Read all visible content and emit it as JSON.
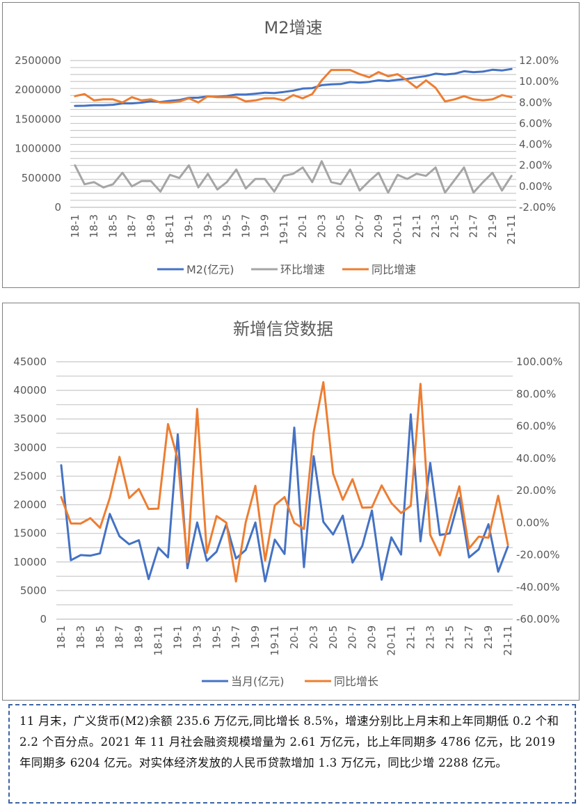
{
  "charts": [
    {
      "title": "M2增速",
      "left_ticks": [
        "2500000",
        "2000000",
        "1500000",
        "1000000",
        "500000",
        "0"
      ],
      "right_ticks": [
        "12.00%",
        "10.00%",
        "8.00%",
        "6.00%",
        "4.00%",
        "2.00%",
        "0.00%",
        "-2.00%"
      ],
      "x_tick_labels": [
        "18-1",
        "18-3",
        "18-5",
        "18-7",
        "18-9",
        "18-11",
        "19-1",
        "19-3",
        "19-5",
        "19-7",
        "19-9",
        "19-11",
        "20-1",
        "20-3",
        "20-5",
        "20-7",
        "20-9",
        "20-11",
        "21-1",
        "21-3",
        "21-5",
        "21-7",
        "21-9",
        "21-11"
      ],
      "legend": [
        {
          "label": "M2(亿元)",
          "color": "#4472c4"
        },
        {
          "label": "环比增速",
          "color": "#a5a5a5"
        },
        {
          "label": "同比增速",
          "color": "#ed7d31"
        }
      ]
    },
    {
      "title": "新增信贷数据",
      "left_ticks": [
        "45000",
        "40000",
        "35000",
        "30000",
        "25000",
        "20000",
        "15000",
        "10000",
        "5000",
        "0"
      ],
      "right_ticks": [
        "100.00%",
        "80.00%",
        "60.00%",
        "40.00%",
        "20.00%",
        "0.00%",
        "-20.00%",
        "-40.00%",
        "-60.00%"
      ],
      "x_tick_labels": [
        "18-1",
        "18-3",
        "18-5",
        "18-7",
        "18-9",
        "18-11",
        "19-1",
        "19-3",
        "19-5",
        "19-7",
        "19-9",
        "19-11",
        "20-1",
        "20-3",
        "20-5",
        "20-7",
        "20-9",
        "20-11",
        "21-1",
        "21-3",
        "21-5",
        "21-7",
        "21-9",
        "21-11"
      ],
      "legend": [
        {
          "label": "当月(亿元)",
          "color": "#4472c4"
        },
        {
          "label": "同比增长",
          "color": "#ed7d31"
        }
      ]
    }
  ],
  "chart_data": [
    {
      "type": "line",
      "title": "M2增速",
      "x": [
        "18-1",
        "18-2",
        "18-3",
        "18-4",
        "18-5",
        "18-6",
        "18-7",
        "18-8",
        "18-9",
        "18-10",
        "18-11",
        "18-12",
        "19-1",
        "19-2",
        "19-3",
        "19-4",
        "19-5",
        "19-6",
        "19-7",
        "19-8",
        "19-9",
        "19-10",
        "19-11",
        "19-12",
        "20-1",
        "20-2",
        "20-3",
        "20-4",
        "20-5",
        "20-6",
        "20-7",
        "20-8",
        "20-9",
        "20-10",
        "20-11",
        "20-12",
        "21-1",
        "21-2",
        "21-3",
        "21-4",
        "21-5",
        "21-6",
        "21-7",
        "21-8",
        "21-9",
        "21-10",
        "21-11"
      ],
      "y_left_lim": [
        0,
        2500000
      ],
      "y_right_lim": [
        -0.02,
        0.12
      ],
      "series": [
        {
          "name": "M2(亿元)",
          "axis": "left",
          "color": "#4472c4",
          "values": [
            1727000,
            1730000,
            1739000,
            1738000,
            1747000,
            1770000,
            1770000,
            1783000,
            1806000,
            1794000,
            1813000,
            1827000,
            1865000,
            1867000,
            1889000,
            1884000,
            1896000,
            1921000,
            1921000,
            1935000,
            1953000,
            1945000,
            1965000,
            1987000,
            2023000,
            2030000,
            2080000,
            2094000,
            2100000,
            2134000,
            2125000,
            2136000,
            2164000,
            2150000,
            2172000,
            2186000,
            2213000,
            2236000,
            2276000,
            2262000,
            2276000,
            2317000,
            2302000,
            2312000,
            2342000,
            2331000,
            2356000
          ]
        },
        {
          "name": "环比增速",
          "axis": "right",
          "color": "#a5a5a5",
          "values": [
            0.02,
            0.002,
            0.004,
            -0.001,
            0.002,
            0.013,
            0.0,
            0.005,
            0.005,
            -0.005,
            0.011,
            0.008,
            0.02,
            -0.001,
            0.012,
            -0.003,
            0.004,
            0.016,
            -0.002,
            0.007,
            0.007,
            -0.005,
            0.01,
            0.012,
            0.018,
            0.004,
            0.024,
            0.004,
            0.002,
            0.016,
            -0.004,
            0.005,
            0.013,
            -0.006,
            0.011,
            0.007,
            0.012,
            0.01,
            0.018,
            -0.006,
            0.006,
            0.018,
            -0.006,
            0.004,
            0.013,
            -0.004,
            0.01
          ]
        },
        {
          "name": "同比增速",
          "axis": "right",
          "color": "#ed7d31",
          "values": [
            0.086,
            0.088,
            0.082,
            0.083,
            0.083,
            0.08,
            0.085,
            0.082,
            0.083,
            0.08,
            0.08,
            0.081,
            0.084,
            0.08,
            0.086,
            0.085,
            0.085,
            0.085,
            0.081,
            0.082,
            0.084,
            0.084,
            0.082,
            0.087,
            0.084,
            0.088,
            0.101,
            0.111,
            0.111,
            0.111,
            0.107,
            0.104,
            0.109,
            0.105,
            0.107,
            0.101,
            0.094,
            0.101,
            0.094,
            0.081,
            0.083,
            0.086,
            0.083,
            0.082,
            0.083,
            0.087,
            0.085
          ]
        }
      ]
    },
    {
      "type": "line",
      "title": "新增信贷数据",
      "x": [
        "18-1",
        "18-2",
        "18-3",
        "18-4",
        "18-5",
        "18-6",
        "18-7",
        "18-8",
        "18-9",
        "18-10",
        "18-11",
        "18-12",
        "19-1",
        "19-2",
        "19-3",
        "19-4",
        "19-5",
        "19-6",
        "19-7",
        "19-8",
        "19-9",
        "19-10",
        "19-11",
        "19-12",
        "20-1",
        "20-2",
        "20-3",
        "20-4",
        "20-5",
        "20-6",
        "20-7",
        "20-8",
        "20-9",
        "20-10",
        "20-11",
        "20-12",
        "21-1",
        "21-2",
        "21-3",
        "21-4",
        "21-5",
        "21-6",
        "21-7",
        "21-8",
        "21-9",
        "21-10",
        "21-11"
      ],
      "y_left_lim": [
        0,
        45000
      ],
      "y_right_lim": [
        -0.6,
        1.0
      ],
      "series": [
        {
          "name": "当月(亿元)",
          "axis": "left",
          "color": "#4472c4",
          "values": [
            26900,
            10300,
            11200,
            11100,
            11500,
            18400,
            14500,
            13100,
            13800,
            7000,
            12500,
            10800,
            32300,
            8900,
            16900,
            10200,
            11800,
            16600,
            10600,
            12100,
            16900,
            6600,
            13900,
            11400,
            33500,
            9100,
            28500,
            17000,
            14800,
            18100,
            9900,
            12800,
            19000,
            6900,
            14300,
            11300,
            35800,
            13600,
            27300,
            14700,
            15000,
            21200,
            10800,
            12200,
            16600,
            8300,
            12700
          ]
        },
        {
          "name": "同比增长",
          "axis": "right",
          "color": "#ed7d31",
          "values": [
            0.159,
            -0.005,
            -0.006,
            0.028,
            -0.032,
            0.153,
            0.409,
            0.153,
            0.209,
            0.085,
            0.087,
            0.613,
            0.395,
            -0.245,
            0.707,
            -0.188,
            0.041,
            0.0,
            -0.366,
            0.002,
            0.229,
            -0.235,
            0.108,
            0.159,
            -0.002,
            -0.039,
            0.563,
            0.873,
            0.305,
            0.142,
            0.27,
            0.093,
            0.095,
            0.231,
            0.122,
            0.06,
            0.105,
            0.863,
            -0.076,
            -0.204,
            0.015,
            0.226,
            -0.16,
            -0.087,
            -0.094,
            0.167,
            -0.137
          ]
        }
      ]
    }
  ],
  "note": {
    "text": "11 月末，广义货币(M2)余额 235.6 万亿元,同比增长 8.5%，增速分别比上月末和上年同期低 0.2 个和 2.2 个百分点。2021 年 11 月社会融资规模增量为 2.61 万亿元，比上年同期多 4786 亿元，比 2019 年同期多 6204 亿元。对实体经济发放的人民币贷款增加 1.3 万亿元，同比少增 2288 亿元。"
  }
}
